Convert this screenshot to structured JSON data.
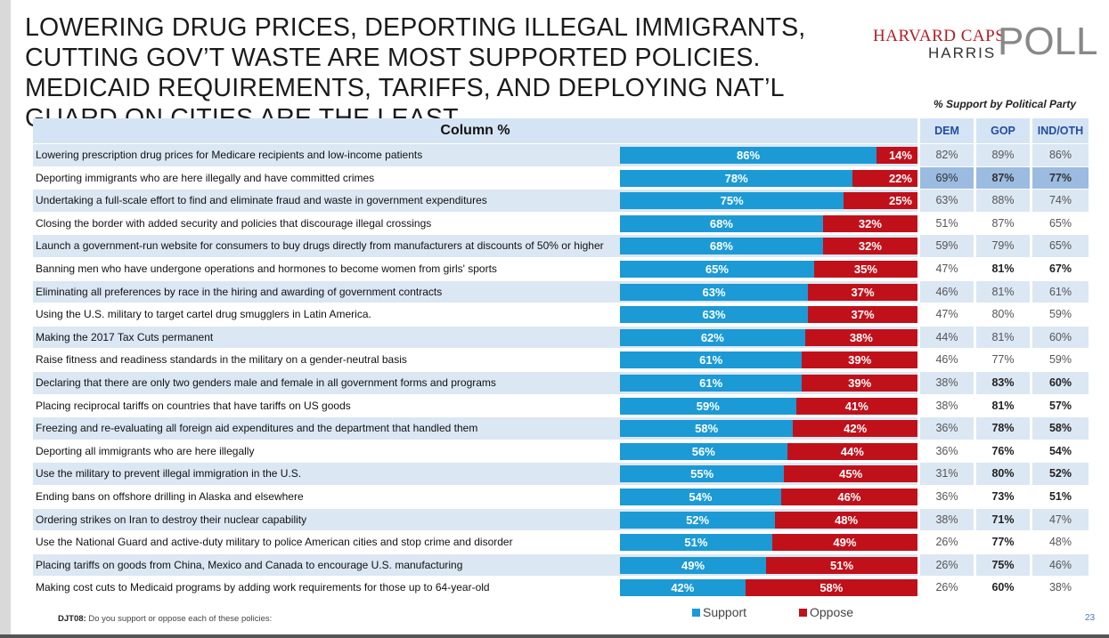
{
  "title": "LOWERING DRUG PRICES, DEPORTING ILLEGAL IMMIGRANTS, CUTTING GOV’T WASTE ARE MOST SUPPORTED POLICIES. MEDICAID REQUIREMENTS, TARIFFS, AND DEPLOYING NAT’L GUARD ON CITIES ARE THE LEAST.",
  "logo": {
    "line1": "HARVARD CAPS",
    "line2": "HARRIS",
    "line3": "POLL"
  },
  "party_caption": "% Support by Political Party",
  "table_header": {
    "column": "Column %",
    "dem": "DEM",
    "gop": "GOP",
    "ind": "IND/OTH"
  },
  "legend": {
    "support": "Support",
    "oppose": "Oppose"
  },
  "colors": {
    "support": "#1b9ad6",
    "oppose": "#c0111b",
    "header_fill": "#d5e4f4",
    "row_shade": "#dbe7f3"
  },
  "footnote": {
    "code": "DJT08:",
    "text": "Do you support or oppose each of these policies:"
  },
  "page_number": "23",
  "chart_data": {
    "type": "bar",
    "orientation": "horizontal-stacked",
    "series": [
      {
        "name": "Support",
        "values": [
          86,
          78,
          75,
          68,
          68,
          65,
          63,
          63,
          62,
          61,
          61,
          59,
          58,
          56,
          55,
          54,
          52,
          51,
          49,
          42
        ]
      },
      {
        "name": "Oppose",
        "values": [
          14,
          22,
          25,
          32,
          32,
          35,
          37,
          37,
          38,
          39,
          39,
          41,
          42,
          44,
          45,
          46,
          48,
          49,
          51,
          58
        ]
      }
    ],
    "rows": [
      {
        "label": "Lowering prescription drug prices for Medicare recipients and low-income patients",
        "support": "86%",
        "oppose": "14%",
        "dem": "82%",
        "gop": "89%",
        "ind": "86%",
        "shaded": true,
        "bold": [],
        "highlight": false
      },
      {
        "label": "Deporting immigrants who are here illegally and have committed crimes",
        "support": "78%",
        "oppose": "22%",
        "dem": "69%",
        "gop": "87%",
        "ind": "77%",
        "shaded": false,
        "bold": [
          "gop",
          "ind"
        ],
        "highlight": true
      },
      {
        "label": "Undertaking a full-scale effort to find and eliminate fraud and waste in government expenditures",
        "support": "75%",
        "oppose": "25%",
        "dem": "63%",
        "gop": "88%",
        "ind": "74%",
        "shaded": true,
        "bold": [],
        "highlight": false
      },
      {
        "label": "Closing the border with added security and policies that discourage illegal crossings",
        "support": "68%",
        "oppose": "32%",
        "dem": "51%",
        "gop": "87%",
        "ind": "65%",
        "shaded": false,
        "bold": [],
        "highlight": false
      },
      {
        "label": "Launch a government-run website for consumers to buy drugs directly from manufacturers at discounts of 50% or higher",
        "support": "68%",
        "oppose": "32%",
        "dem": "59%",
        "gop": "79%",
        "ind": "65%",
        "shaded": true,
        "bold": [],
        "highlight": false
      },
      {
        "label": "Banning men who have undergone operations and hormones to become women from girls' sports",
        "support": "65%",
        "oppose": "35%",
        "dem": "47%",
        "gop": "81%",
        "ind": "67%",
        "shaded": false,
        "bold": [
          "gop",
          "ind"
        ],
        "highlight": false
      },
      {
        "label": "Eliminating all preferences by race in the hiring and awarding of government contracts",
        "support": "63%",
        "oppose": "37%",
        "dem": "46%",
        "gop": "81%",
        "ind": "61%",
        "shaded": true,
        "bold": [],
        "highlight": false
      },
      {
        "label": "Using the U.S. military to target cartel drug smugglers in Latin America.",
        "support": "63%",
        "oppose": "37%",
        "dem": "47%",
        "gop": "80%",
        "ind": "59%",
        "shaded": false,
        "bold": [],
        "highlight": false
      },
      {
        "label": "Making the 2017 Tax Cuts permanent",
        "support": "62%",
        "oppose": "38%",
        "dem": "44%",
        "gop": "81%",
        "ind": "60%",
        "shaded": true,
        "bold": [],
        "highlight": false
      },
      {
        "label": "Raise fitness and readiness standards in the military on a gender-neutral basis",
        "support": "61%",
        "oppose": "39%",
        "dem": "46%",
        "gop": "77%",
        "ind": "59%",
        "shaded": false,
        "bold": [],
        "highlight": false
      },
      {
        "label": "Declaring that there are only two genders male and female in all government forms and programs",
        "support": "61%",
        "oppose": "39%",
        "dem": "38%",
        "gop": "83%",
        "ind": "60%",
        "shaded": true,
        "bold": [
          "gop",
          "ind"
        ],
        "highlight": false
      },
      {
        "label": "Placing reciprocal tariffs on countries that have tariffs on US goods",
        "support": "59%",
        "oppose": "41%",
        "dem": "38%",
        "gop": "81%",
        "ind": "57%",
        "shaded": false,
        "bold": [
          "gop",
          "ind"
        ],
        "highlight": false
      },
      {
        "label": "Freezing and re-evaluating all foreign aid expenditures and the department that handled them",
        "support": "58%",
        "oppose": "42%",
        "dem": "36%",
        "gop": "78%",
        "ind": "58%",
        "shaded": true,
        "bold": [
          "gop",
          "ind"
        ],
        "highlight": false
      },
      {
        "label": "Deporting all immigrants who are here illegally",
        "support": "56%",
        "oppose": "44%",
        "dem": "36%",
        "gop": "76%",
        "ind": "54%",
        "shaded": false,
        "bold": [
          "gop",
          "ind"
        ],
        "highlight": false
      },
      {
        "label": "Use the military to prevent illegal immigration in the U.S.",
        "support": "55%",
        "oppose": "45%",
        "dem": "31%",
        "gop": "80%",
        "ind": "52%",
        "shaded": true,
        "bold": [
          "gop",
          "ind"
        ],
        "highlight": false
      },
      {
        "label": "Ending bans on offshore drilling in Alaska and elsewhere",
        "support": "54%",
        "oppose": "46%",
        "dem": "36%",
        "gop": "73%",
        "ind": "51%",
        "shaded": false,
        "bold": [
          "gop",
          "ind"
        ],
        "highlight": false
      },
      {
        "label": "Ordering strikes on Iran to destroy their nuclear capability",
        "support": "52%",
        "oppose": "48%",
        "dem": "38%",
        "gop": "71%",
        "ind": "47%",
        "shaded": true,
        "bold": [
          "gop"
        ],
        "highlight": false
      },
      {
        "label": "Use the National Guard and active-duty military to police American cities and stop crime and disorder",
        "support": "51%",
        "oppose": "49%",
        "dem": "26%",
        "gop": "77%",
        "ind": "48%",
        "shaded": false,
        "bold": [
          "gop"
        ],
        "highlight": false
      },
      {
        "label": "Placing tariffs on goods from China, Mexico and Canada to encourage U.S. manufacturing",
        "support": "49%",
        "oppose": "51%",
        "dem": "26%",
        "gop": "75%",
        "ind": "46%",
        "shaded": true,
        "bold": [
          "gop"
        ],
        "highlight": false
      },
      {
        "label": "Making cost cuts to Medicaid programs by adding work requirements for those up to 64-year-old",
        "support": "42%",
        "oppose": "58%",
        "dem": "26%",
        "gop": "60%",
        "ind": "38%",
        "shaded": false,
        "bold": [
          "gop"
        ],
        "highlight": false
      }
    ],
    "xlim": [
      0,
      100
    ]
  }
}
